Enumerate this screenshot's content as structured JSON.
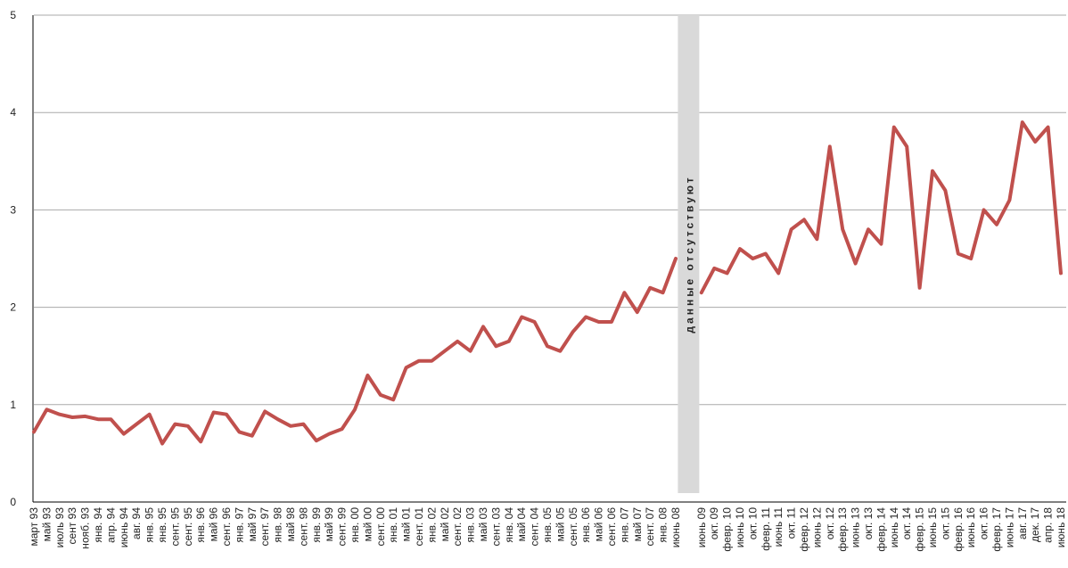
{
  "chart_data": {
    "type": "line",
    "annotation": "данные отсутствуют",
    "categories": [
      "март 93",
      "май 93",
      "июль 93",
      "сент 93",
      "нояб. 93",
      "янв. 94",
      "апр. 94",
      "июнь 94",
      "авг. 94",
      "янв. 95",
      "янв. 95",
      "сент. 95",
      "сент. 95",
      "янв. 96",
      "май 96",
      "сент. 96",
      "янв. 97",
      "май 97",
      "сент. 97",
      "янв. 98",
      "май 98",
      "сент. 98",
      "янв. 99",
      "май 99",
      "сент. 99",
      "янв. 00",
      "май 00",
      "сент. 00",
      "янв. 01",
      "май 01",
      "сент. 01",
      "янв. 02",
      "май 02",
      "сент. 02",
      "янв. 03",
      "май 03",
      "сент. 03",
      "янв. 04",
      "май 04",
      "сент. 04",
      "янв. 05",
      "май 05",
      "сент. 05",
      "янв. 06",
      "май 06",
      "сент. 06",
      "янв. 07",
      "май 07",
      "сент. 07",
      "янв. 08",
      "июнь 08",
      null,
      "июнь 09",
      "окт. 09",
      "февр. 10",
      "июнь 10",
      "окт. 10",
      "февр. 11",
      "июнь 11",
      "окт. 11",
      "февр. 12",
      "июнь 12",
      "окт. 12",
      "февр. 13",
      "июнь 13",
      "окт. 13",
      "февр. 14",
      "июнь 14",
      "окт. 14",
      "февр. 15",
      "июнь 15",
      "окт. 15",
      "февр. 16",
      "июнь 16",
      "окт. 16",
      "февр. 17",
      "июнь 17",
      "авг. 17",
      "дек. 17",
      "апр. 18",
      "июнь 18"
    ],
    "values": [
      0.72,
      0.95,
      0.9,
      0.87,
      0.88,
      0.85,
      0.85,
      0.7,
      0.8,
      0.9,
      0.6,
      0.8,
      0.78,
      0.62,
      0.92,
      0.9,
      0.72,
      0.68,
      0.93,
      0.85,
      0.78,
      0.8,
      0.63,
      0.7,
      0.75,
      0.95,
      1.3,
      1.1,
      1.05,
      1.38,
      1.45,
      1.45,
      1.55,
      1.65,
      1.55,
      1.8,
      1.6,
      1.65,
      1.9,
      1.85,
      1.6,
      1.55,
      1.75,
      1.9,
      1.85,
      1.85,
      2.15,
      1.95,
      2.2,
      2.15,
      2.5,
      null,
      2.15,
      2.4,
      2.35,
      2.6,
      2.5,
      2.55,
      2.35,
      2.8,
      2.9,
      2.7,
      3.65,
      2.8,
      2.45,
      2.8,
      2.65,
      3.85,
      3.65,
      2.2,
      3.4,
      3.2,
      2.55,
      2.5,
      3.0,
      2.85,
      3.1,
      3.9,
      3.7,
      3.85,
      2.35
    ],
    "color": "#c0504d",
    "ylim": [
      0,
      5
    ],
    "yticks": [
      0,
      1,
      2,
      3,
      4,
      5
    ],
    "grid": true
  }
}
